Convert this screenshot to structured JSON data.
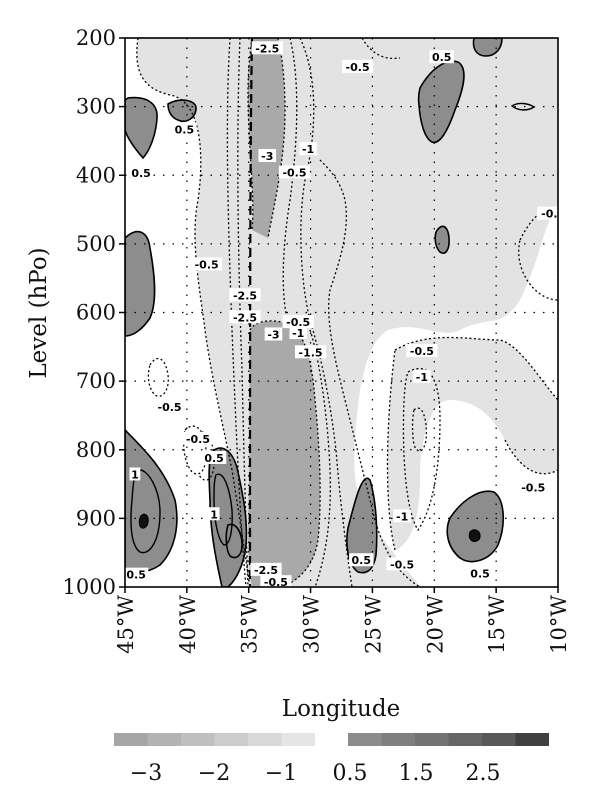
{
  "chart_data": {
    "type": "heatmap",
    "title": "",
    "xlabel": "Longitude",
    "ylabel": "Level (hPo)",
    "x_ticks": [
      {
        "value": -45,
        "label": "45°W"
      },
      {
        "value": -40,
        "label": "40°W"
      },
      {
        "value": -35,
        "label": "35°W"
      },
      {
        "value": -30,
        "label": "30°W"
      },
      {
        "value": -25,
        "label": "25°W"
      },
      {
        "value": -20,
        "label": "20°W"
      },
      {
        "value": -15,
        "label": "15°W"
      },
      {
        "value": -10,
        "label": "10°W"
      }
    ],
    "y_ticks": [
      {
        "value": 200,
        "label": "200"
      },
      {
        "value": 300,
        "label": "300"
      },
      {
        "value": 400,
        "label": "400"
      },
      {
        "value": 500,
        "label": "500"
      },
      {
        "value": 600,
        "label": "600"
      },
      {
        "value": 700,
        "label": "700"
      },
      {
        "value": 800,
        "label": "800"
      },
      {
        "value": 900,
        "label": "900"
      },
      {
        "value": 1000,
        "label": "1000"
      }
    ],
    "xlim": [
      -45,
      -10
    ],
    "ylim": [
      1000,
      200
    ],
    "grid": true,
    "negative_contours": "dotted",
    "positive_contours": "solid",
    "colorbar": {
      "labels": [
        "−3",
        "−2",
        "−1",
        "0.5",
        "1.5",
        "2.5"
      ],
      "negative_colors": [
        "#a6a6a6",
        "#b3b3b3",
        "#bfbfbf",
        "#cccccc",
        "#d8d8d8",
        "#e5e5e5"
      ],
      "positive_colors": [
        "#8c8c8c",
        "#7f7f7f",
        "#737373",
        "#666666",
        "#595959",
        "#404040"
      ]
    },
    "fill_colors": {
      "negative_light": "#e3e3e3",
      "negative_strong": "#a9a9a9",
      "positive": "#8d8d8d"
    },
    "contour_labels": [
      {
        "text": "-2.5",
        "lon": -33.5,
        "level": 215
      },
      {
        "text": "-0.5",
        "lon": -26.2,
        "level": 242
      },
      {
        "text": "0.5",
        "lon": -19.4,
        "level": 228
      },
      {
        "text": "0.5",
        "lon": -40.2,
        "level": 333
      },
      {
        "text": "-3",
        "lon": -33.5,
        "level": 372
      },
      {
        "text": "-1",
        "lon": -30.2,
        "level": 362
      },
      {
        "text": "0.5",
        "lon": -43.7,
        "level": 397
      },
      {
        "text": "-0.5",
        "lon": -31.3,
        "level": 396
      },
      {
        "text": "-0.",
        "lon": -10.7,
        "level": 456
      },
      {
        "text": "-0.5",
        "lon": -38.4,
        "level": 530
      },
      {
        "text": "-2.5",
        "lon": -35.3,
        "level": 575
      },
      {
        "text": "-2.5",
        "lon": -35.3,
        "level": 607
      },
      {
        "text": "-0.5",
        "lon": -31.0,
        "level": 614
      },
      {
        "text": "-3",
        "lon": -33.0,
        "level": 632
      },
      {
        "text": "-1",
        "lon": -31.0,
        "level": 630
      },
      {
        "text": "-1.5",
        "lon": -30.0,
        "level": 658
      },
      {
        "text": "-0.5",
        "lon": -21.0,
        "level": 656
      },
      {
        "text": "-1",
        "lon": -21.0,
        "level": 694
      },
      {
        "text": "-0.5",
        "lon": -41.4,
        "level": 738
      },
      {
        "text": "-0.5",
        "lon": -39.1,
        "level": 784
      },
      {
        "text": "0.5",
        "lon": -37.8,
        "level": 812
      },
      {
        "text": "1",
        "lon": -44.2,
        "level": 836
      },
      {
        "text": "-0.5",
        "lon": -12.0,
        "level": 855
      },
      {
        "text": "1",
        "lon": -37.8,
        "level": 894
      },
      {
        "text": "-1",
        "lon": -22.6,
        "level": 897
      },
      {
        "text": "0.5",
        "lon": -25.9,
        "level": 961
      },
      {
        "text": "-0.5",
        "lon": -22.6,
        "level": 967
      },
      {
        "text": "-2.5",
        "lon": -33.6,
        "level": 975
      },
      {
        "text": "0.5",
        "lon": -16.3,
        "level": 980
      },
      {
        "text": "0.5",
        "lon": -44.1,
        "level": 982
      },
      {
        "text": "-0.5",
        "lon": -32.8,
        "level": 993
      }
    ]
  }
}
